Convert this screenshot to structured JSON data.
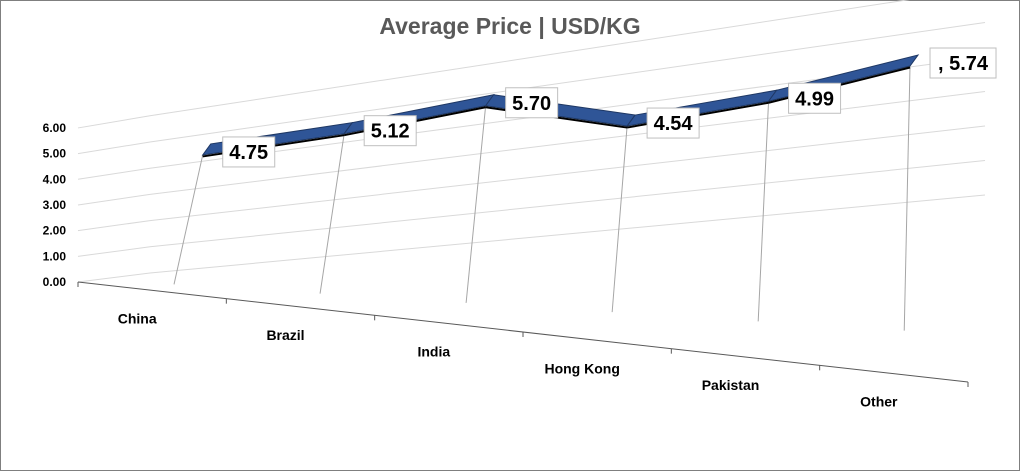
{
  "chart_data": {
    "type": "line",
    "title": "Average Price | USD/KG",
    "categories": [
      "China",
      "Brazil",
      "India",
      "Hong Kong",
      "Pakistan",
      "Other"
    ],
    "values": [
      4.75,
      5.12,
      5.7,
      4.54,
      4.99,
      5.74
    ],
    "data_labels": [
      "4.75",
      "5.12",
      "5.70",
      "4.54",
      "4.99",
      ", 5.74"
    ],
    "y_ticks": [
      "0.00",
      "1.00",
      "2.00",
      "3.00",
      "4.00",
      "5.00",
      "6.00"
    ],
    "ylim": [
      0,
      6
    ],
    "grid": true,
    "style": "3d-ribbon",
    "legend": "none",
    "colors": {
      "ribbon": "#2F5597",
      "ribbon_edge": "#1F3864",
      "grid": "#d9d9d9",
      "title": "#595959"
    }
  }
}
